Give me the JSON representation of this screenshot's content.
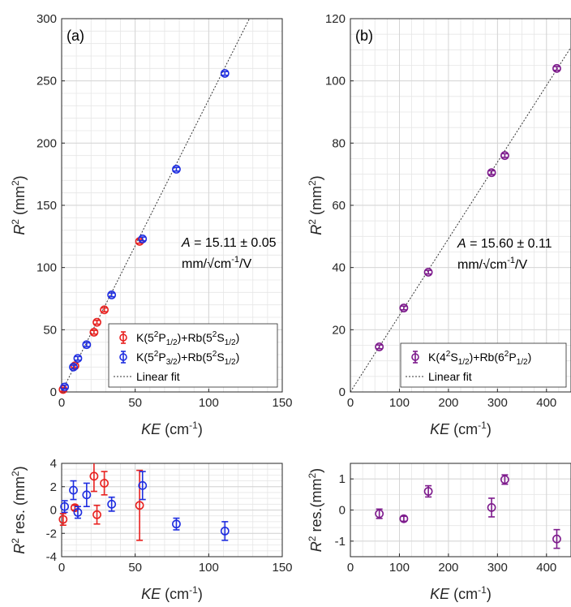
{
  "chart_data": [
    {
      "type": "scatter",
      "panel_label": "(a)",
      "xlabel_var": "KE",
      "xlabel_unit": " (cm",
      "xlabel_unit_exp": "-1",
      "xlabel_close": ")",
      "ylabel_var": "R",
      "ylabel_exp": "2",
      "ylabel_unit": " (mm",
      "ylabel_unit_exp": "2",
      "ylabel_close": ")",
      "xlim": [
        0,
        150
      ],
      "ylim": [
        0,
        300
      ],
      "xticks": [
        0,
        50,
        100,
        150
      ],
      "yticks": [
        0,
        50,
        100,
        150,
        200,
        250,
        300
      ],
      "grid": true,
      "fit": {
        "slope": 2.35,
        "intercept": 0.0
      },
      "annotation": {
        "line1_var": "A",
        "line1_rest": " = 15.11 ± 0.05",
        "line2": "mm/√cm",
        "line2_exp": "-1",
        "line2_tail": "/V"
      },
      "legend": {
        "position": "bottom-right",
        "entries": [
          {
            "species": "K(5",
            "t1": "2",
            "t2": "P",
            "t3": "1/2",
            "t4": ")+Rb(5",
            "t5": "2",
            "t6": "S",
            "t7": "1/2",
            "t8": ")",
            "color": "#e8211f"
          },
          {
            "species": "K(5",
            "t1": "2",
            "t2": "P",
            "t3": "3/2",
            "t4": ")+Rb(5",
            "t5": "2",
            "t6": "S",
            "t7": "1/2",
            "t8": ")",
            "color": "#1f2ee0"
          }
        ],
        "fit_label": "Linear fit"
      },
      "series": [
        {
          "color": "#e8211f",
          "x": [
            1,
            9,
            22,
            24,
            29,
            53
          ],
          "y": [
            2,
            21,
            48,
            56,
            66,
            121
          ],
          "err": [
            1.5,
            1.5,
            1.5,
            1.5,
            1.5,
            1.5
          ]
        },
        {
          "color": "#1f2ee0",
          "x": [
            2,
            8,
            11,
            17,
            34,
            55,
            78,
            111
          ],
          "y": [
            4,
            20,
            27,
            38,
            78,
            123,
            179,
            256
          ],
          "err": [
            1.5,
            1.5,
            1.5,
            1.5,
            1.5,
            1.5,
            1.5,
            1.5
          ]
        }
      ]
    },
    {
      "type": "scatter",
      "panel_label": "(b)",
      "xlabel_var": "KE",
      "xlabel_unit": " (cm",
      "xlabel_unit_exp": "-1",
      "xlabel_close": ")",
      "ylabel_var": "R",
      "ylabel_exp": "2",
      "ylabel_unit": " (mm",
      "ylabel_unit_exp": "2",
      "ylabel_close": ")",
      "xlim": [
        0,
        450
      ],
      "ylim": [
        0,
        120
      ],
      "xticks": [
        0,
        100,
        200,
        300,
        400
      ],
      "yticks": [
        0,
        20,
        40,
        60,
        80,
        100,
        120
      ],
      "grid": true,
      "fit": {
        "slope": 0.2463,
        "intercept": 0.0
      },
      "annotation": {
        "line1_var": "A",
        "line1_rest": " = 15.60 ± 0.11",
        "line2": "mm/√cm",
        "line2_exp": "-1",
        "line2_tail": "/V"
      },
      "legend": {
        "position": "bottom-right",
        "entries": [
          {
            "species": "K(4",
            "t1": "2",
            "t2": "S",
            "t3": "1/2",
            "t4": ")+Rb(6",
            "t5": "2",
            "t6": "P",
            "t7": "1/2",
            "t8": ")",
            "color": "#7d1a8c"
          }
        ],
        "fit_label": "Linear fit"
      },
      "series": [
        {
          "color": "#7d1a8c",
          "x": [
            59,
            109,
            159,
            288,
            315,
            421
          ],
          "y": [
            14.5,
            27,
            38.5,
            70.5,
            76,
            104
          ],
          "err": [
            0.6,
            0.6,
            0.6,
            0.6,
            0.6,
            0.6
          ]
        }
      ]
    },
    {
      "type": "scatter",
      "xlabel_var": "KE",
      "xlabel_unit": " (cm",
      "xlabel_unit_exp": "-1",
      "xlabel_close": ")",
      "ylabel_var": "R",
      "ylabel_exp": "2",
      "ylabel_unit": " res. (mm",
      "ylabel_unit_exp": "2",
      "ylabel_close": ")",
      "xlim": [
        0,
        150
      ],
      "ylim": [
        -4,
        4
      ],
      "xticks": [
        0,
        50,
        100,
        150
      ],
      "yticks": [
        -4,
        -2,
        0,
        2,
        4
      ],
      "grid": true,
      "series": [
        {
          "color": "#e8211f",
          "x": [
            1,
            9,
            22,
            24,
            29,
            53
          ],
          "y": [
            -0.8,
            0.2,
            2.9,
            -0.4,
            2.3,
            0.4
          ],
          "err": [
            0.5,
            0.2,
            1.3,
            0.8,
            1.0,
            3.0
          ]
        },
        {
          "color": "#1f2ee0",
          "x": [
            2,
            8,
            11,
            17,
            34,
            55,
            78,
            111
          ],
          "y": [
            0.3,
            1.7,
            -0.2,
            1.3,
            0.5,
            2.1,
            -1.2,
            -1.8
          ],
          "err": [
            0.5,
            0.8,
            0.5,
            1.0,
            0.6,
            1.2,
            0.5,
            0.8
          ]
        }
      ]
    },
    {
      "type": "scatter",
      "xlabel_var": "KE",
      "xlabel_unit": " (cm",
      "xlabel_unit_exp": "-1",
      "xlabel_close": ")",
      "ylabel_var": "R",
      "ylabel_exp": "2",
      "ylabel_unit": " res.(mm",
      "ylabel_unit_exp": "2",
      "ylabel_close": ")",
      "xlim": [
        0,
        450
      ],
      "ylim": [
        -1.5,
        1.5
      ],
      "xticks": [
        0,
        100,
        200,
        300,
        400
      ],
      "yticks": [
        -1,
        0,
        1
      ],
      "grid": true,
      "series": [
        {
          "color": "#7d1a8c",
          "x": [
            59,
            109,
            159,
            288,
            315,
            421
          ],
          "y": [
            -0.12,
            -0.28,
            0.6,
            0.08,
            0.98,
            -0.93
          ],
          "err": [
            0.15,
            0.08,
            0.18,
            0.3,
            0.15,
            0.3
          ]
        }
      ]
    }
  ]
}
